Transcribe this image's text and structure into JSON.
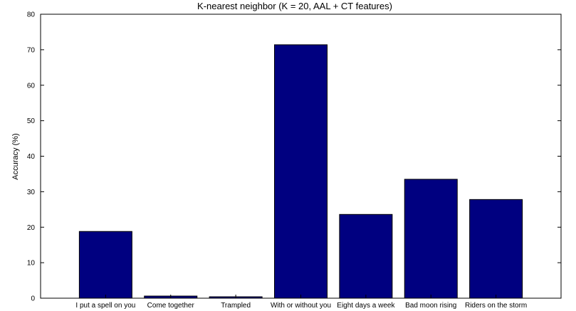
{
  "chart_data": {
    "type": "bar",
    "title": "K-nearest neighbor (K = 20, AAL + CT features)",
    "xlabel": "",
    "ylabel": "Accuracy (%)",
    "ylim": [
      0,
      80
    ],
    "yticks": [
      0,
      10,
      20,
      30,
      40,
      50,
      60,
      70,
      80
    ],
    "categories": [
      "I put a spell on you",
      "Come together",
      "Trampled",
      "With or without you",
      "Eight days a week",
      "Bad moon rising",
      "Riders on the storm"
    ],
    "values": [
      18.8,
      0.6,
      0.4,
      71.4,
      23.6,
      33.5,
      27.8
    ],
    "grid": false,
    "bar_color": "#000080",
    "axis_color": "#000000"
  }
}
